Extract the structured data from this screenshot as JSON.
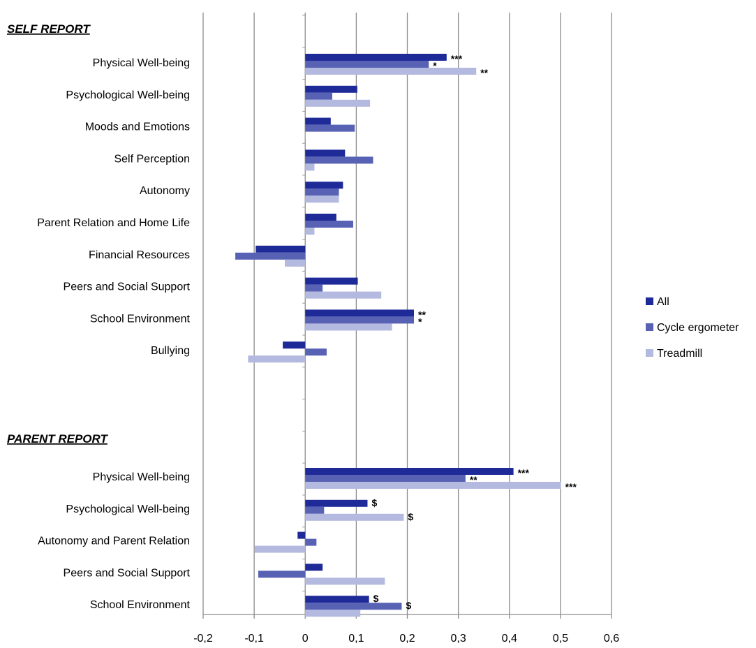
{
  "chart_data": {
    "type": "bar",
    "orientation": "horizontal",
    "xlim": [
      -0.2,
      0.6
    ],
    "x_ticks": [
      "-0,2",
      "-0,1",
      "0",
      "0,1",
      "0,2",
      "0,3",
      "0,4",
      "0,5",
      "0,6"
    ],
    "grid": true,
    "legend_position": "right",
    "series": [
      {
        "name": "All",
        "color": "#1f2a99"
      },
      {
        "name": "Cycle ergometer",
        "color": "#5862b4"
      },
      {
        "name": "Treadmill",
        "color": "#b4b9e0"
      }
    ],
    "sections": [
      {
        "label": "SELF REPORT",
        "categories": [
          {
            "label": "Physical Well-being",
            "values": [
              0.277,
              0.242,
              0.335
            ],
            "sig": [
              "***",
              "*",
              "**"
            ]
          },
          {
            "label": "Psychological Well-being",
            "values": [
              0.102,
              0.053,
              0.127
            ],
            "sig": [
              "",
              "",
              ""
            ]
          },
          {
            "label": "Moods and Emotions",
            "values": [
              0.05,
              0.097,
              0.0
            ],
            "sig": [
              "",
              "",
              ""
            ]
          },
          {
            "label": "Self Perception",
            "values": [
              0.078,
              0.133,
              0.018
            ],
            "sig": [
              "",
              "",
              ""
            ]
          },
          {
            "label": "Autonomy",
            "values": [
              0.074,
              0.066,
              0.066
            ],
            "sig": [
              "",
              "",
              ""
            ]
          },
          {
            "label": "Parent Relation and Home Life",
            "values": [
              0.061,
              0.094,
              0.018
            ],
            "sig": [
              "",
              "",
              ""
            ]
          },
          {
            "label": "Financial Resources",
            "values": [
              -0.097,
              -0.137,
              -0.04
            ],
            "sig": [
              "",
              "",
              ""
            ]
          },
          {
            "label": "Peers and Social Support",
            "values": [
              0.103,
              0.034,
              0.149
            ],
            "sig": [
              "",
              "",
              ""
            ]
          },
          {
            "label": "School  Environment",
            "values": [
              0.213,
              0.213,
              0.17
            ],
            "sig": [
              "**",
              "*",
              ""
            ]
          },
          {
            "label": "Bullying",
            "values": [
              -0.044,
              0.042,
              -0.112
            ],
            "sig": [
              "",
              "",
              ""
            ]
          }
        ]
      },
      {
        "label": "PARENT REPORT",
        "categories": [
          {
            "label": "Physical Well-being",
            "values": [
              0.408,
              0.314,
              0.501
            ],
            "sig": [
              "***",
              "**",
              "***"
            ]
          },
          {
            "label": "Psychological Well-being",
            "values": [
              0.122,
              0.037,
              0.193
            ],
            "sig": [
              "$",
              "",
              "$"
            ]
          },
          {
            "label": "Autonomy and Parent Relation",
            "values": [
              -0.015,
              0.022,
              -0.099
            ],
            "sig": [
              "",
              "",
              ""
            ]
          },
          {
            "label": "Peers and Social Support",
            "values": [
              0.034,
              -0.092,
              0.156
            ],
            "sig": [
              "",
              "",
              ""
            ]
          },
          {
            "label": "School  Environment",
            "values": [
              0.125,
              0.189,
              0.108
            ],
            "sig": [
              "$",
              "$",
              ""
            ]
          }
        ]
      }
    ]
  }
}
